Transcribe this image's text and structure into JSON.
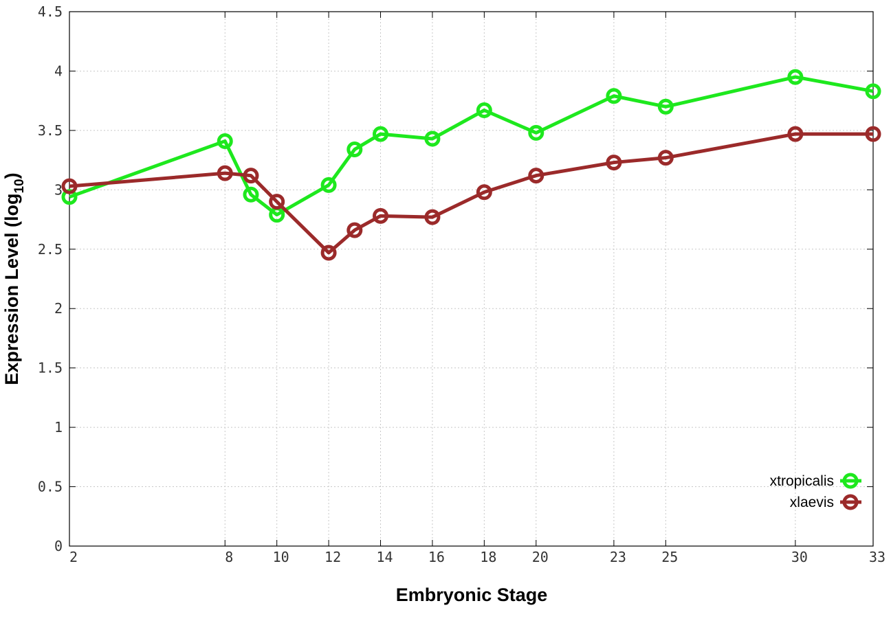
{
  "chart_data": {
    "type": "line",
    "xlabel": "Embryonic Stage",
    "ylabel_main": "Expression Level (log",
    "ylabel_sub": "10",
    "ylabel_close": ")",
    "x": [
      2,
      8,
      9,
      10,
      12,
      13,
      14,
      16,
      18,
      20,
      23,
      25,
      30,
      33
    ],
    "x_tick_labels": [
      "2",
      "8",
      "10",
      "12",
      "14",
      "16",
      "18",
      "20",
      "23",
      "25",
      "30",
      "33"
    ],
    "x_ticks": [
      2,
      8,
      10,
      12,
      14,
      16,
      18,
      20,
      23,
      25,
      30,
      33
    ],
    "xlim": [
      2,
      33
    ],
    "y_ticks": [
      0,
      0.5,
      1,
      1.5,
      2,
      2.5,
      3,
      3.5,
      4,
      4.5
    ],
    "y_tick_labels": [
      "0",
      "0.5",
      "1",
      "1.5",
      "2",
      "2.5",
      "3",
      "3.5",
      "4",
      "4.5"
    ],
    "ylim": [
      0,
      4.5
    ],
    "grid": true,
    "legend_position": "bottom-right",
    "series": [
      {
        "name": "xtropicalis",
        "color": "#1ee81e",
        "values": [
          2.94,
          3.41,
          2.96,
          2.79,
          3.04,
          3.34,
          3.47,
          3.43,
          3.67,
          3.48,
          3.79,
          3.7,
          3.95,
          3.83
        ]
      },
      {
        "name": "xlaevis",
        "color": "#9b2a2a",
        "values": [
          3.03,
          3.14,
          3.12,
          2.9,
          2.47,
          2.66,
          2.78,
          2.77,
          2.98,
          3.12,
          3.23,
          3.27,
          3.47,
          3.47
        ]
      }
    ]
  }
}
